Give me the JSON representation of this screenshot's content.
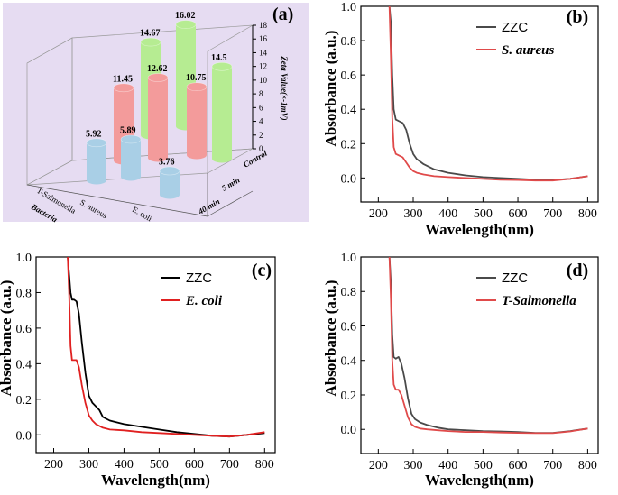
{
  "chart_data": [
    {
      "panel": "(a)",
      "type": "bar",
      "subtype": "3d-cylinder",
      "categories": [
        "T-Salmonella",
        "S. aureus",
        "E. coli"
      ],
      "category_axis_title": "Bacteria",
      "series": [
        {
          "name": "40 min",
          "color": "#a9cfe6",
          "values": [
            5.92,
            5.89,
            3.76
          ]
        },
        {
          "name": "5 min",
          "color": "#f39b9b",
          "values": [
            11.45,
            12.62,
            10.75
          ]
        },
        {
          "name": "Control",
          "color": "#b6ec92",
          "values": [
            14.67,
            16.02,
            14.5
          ]
        }
      ],
      "zlabel": "Zeta Value(×-1mV)",
      "zlim": [
        0,
        18
      ],
      "zticks": [
        0,
        2,
        4,
        6,
        8,
        10,
        12,
        14,
        16,
        18
      ],
      "value_labels": [
        "5.92",
        "5.89",
        "3.76",
        "11.45",
        "12.62",
        "10.75",
        "14.67",
        "16.02",
        "14.5"
      ],
      "background": "#e6dcf2"
    },
    {
      "panel": "(b)",
      "type": "line",
      "xlabel": "Wavelength(nm)",
      "ylabel": "Absorbance (a.u.)",
      "xlim": [
        150,
        830
      ],
      "ylim": [
        -0.14,
        1.0
      ],
      "xticks": [
        200,
        300,
        400,
        500,
        600,
        700,
        800
      ],
      "yticks": [
        0.0,
        0.2,
        0.4,
        0.6,
        0.8,
        1.0
      ],
      "legend": "top-right",
      "series": [
        {
          "name": "ZZC",
          "color": "#4a4a4a",
          "x": [
            232,
            236,
            240,
            244,
            250,
            260,
            270,
            280,
            290,
            300,
            310,
            330,
            360,
            400,
            450,
            500,
            550,
            600,
            650,
            700,
            750,
            800
          ],
          "y": [
            1.0,
            0.9,
            0.6,
            0.4,
            0.34,
            0.33,
            0.32,
            0.28,
            0.2,
            0.14,
            0.11,
            0.08,
            0.05,
            0.03,
            0.015,
            0.005,
            0.0,
            -0.005,
            -0.01,
            -0.012,
            -0.005,
            0.01
          ]
        },
        {
          "name": "S. aureus",
          "color": "#e04a4a",
          "x": [
            232,
            236,
            240,
            244,
            250,
            260,
            270,
            280,
            290,
            300,
            310,
            330,
            360,
            400,
            450,
            500,
            550,
            600,
            650,
            700,
            750,
            800
          ],
          "y": [
            1.0,
            0.7,
            0.35,
            0.18,
            0.14,
            0.13,
            0.12,
            0.09,
            0.06,
            0.04,
            0.03,
            0.02,
            0.01,
            0.005,
            0.0,
            -0.005,
            -0.01,
            -0.012,
            -0.015,
            -0.015,
            -0.005,
            0.01
          ]
        }
      ]
    },
    {
      "panel": "(c)",
      "type": "line",
      "xlabel": "Wavelength(nm)",
      "ylabel": "Absorbance (a.u.)",
      "xlim": [
        150,
        830
      ],
      "ylim": [
        -0.1,
        1.0
      ],
      "xticks": [
        200,
        300,
        400,
        500,
        600,
        700,
        800
      ],
      "yticks": [
        0.0,
        0.2,
        0.4,
        0.6,
        0.8,
        1.0
      ],
      "legend": "top-right",
      "series": [
        {
          "name": "ZZC",
          "color": "#000000",
          "x": [
            240,
            244,
            248,
            252,
            258,
            265,
            272,
            280,
            290,
            300,
            310,
            320,
            330,
            340,
            360,
            400,
            450,
            500,
            550,
            600,
            650,
            700,
            750,
            800
          ],
          "y": [
            1.0,
            0.9,
            0.8,
            0.76,
            0.76,
            0.75,
            0.68,
            0.52,
            0.35,
            0.22,
            0.18,
            0.16,
            0.14,
            0.1,
            0.08,
            0.06,
            0.045,
            0.03,
            0.015,
            0.005,
            -0.005,
            -0.01,
            0.0,
            0.01
          ]
        },
        {
          "name": "E. coli",
          "color": "#e02020",
          "x": [
            240,
            244,
            248,
            252,
            258,
            265,
            272,
            280,
            290,
            300,
            310,
            320,
            330,
            340,
            360,
            400,
            450,
            500,
            550,
            600,
            650,
            700,
            750,
            800
          ],
          "y": [
            1.0,
            0.8,
            0.5,
            0.42,
            0.42,
            0.42,
            0.38,
            0.28,
            0.18,
            0.11,
            0.08,
            0.06,
            0.05,
            0.04,
            0.03,
            0.025,
            0.015,
            0.01,
            0.005,
            0.0,
            -0.005,
            -0.01,
            0.0,
            0.015
          ]
        }
      ]
    },
    {
      "panel": "(d)",
      "type": "line",
      "xlabel": "Wavelength(nm)",
      "ylabel": "Absorbance (a.u.)",
      "xlim": [
        150,
        830
      ],
      "ylim": [
        -0.14,
        1.0
      ],
      "xticks": [
        200,
        300,
        400,
        500,
        600,
        700,
        800
      ],
      "yticks": [
        0.0,
        0.2,
        0.4,
        0.6,
        0.8,
        1.0
      ],
      "legend": "top-right",
      "series": [
        {
          "name": "ZZC",
          "color": "#4a4a4a",
          "x": [
            232,
            236,
            240,
            244,
            250,
            258,
            266,
            275,
            285,
            295,
            305,
            320,
            340,
            370,
            400,
            450,
            500,
            550,
            600,
            650,
            700,
            750,
            800
          ],
          "y": [
            1.0,
            0.85,
            0.55,
            0.42,
            0.41,
            0.42,
            0.38,
            0.3,
            0.18,
            0.09,
            0.06,
            0.04,
            0.025,
            0.01,
            0.0,
            -0.005,
            -0.01,
            -0.012,
            -0.015,
            -0.02,
            -0.02,
            -0.01,
            0.005
          ]
        },
        {
          "name": "T-Salmonella",
          "color": "#e04a4a",
          "x": [
            232,
            236,
            240,
            244,
            250,
            258,
            266,
            275,
            285,
            295,
            305,
            320,
            340,
            370,
            400,
            450,
            500,
            550,
            600,
            650,
            700,
            750,
            800
          ],
          "y": [
            1.0,
            0.75,
            0.4,
            0.26,
            0.23,
            0.23,
            0.2,
            0.14,
            0.07,
            0.03,
            0.015,
            0.005,
            0.0,
            -0.005,
            -0.01,
            -0.015,
            -0.015,
            -0.018,
            -0.02,
            -0.022,
            -0.022,
            -0.012,
            0.005
          ]
        }
      ]
    }
  ]
}
